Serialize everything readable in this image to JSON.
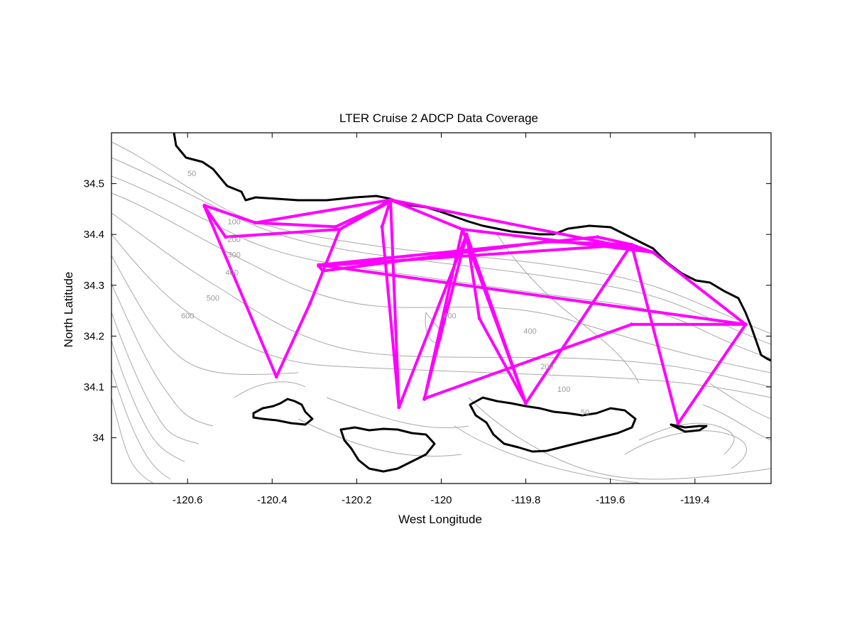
{
  "chart_data": {
    "type": "line",
    "title": "LTER Cruise 2 ADCP Data Coverage",
    "xlabel": "West Longitude",
    "ylabel": "North Latitude",
    "xlim": [
      -120.78,
      -119.22
    ],
    "ylim": [
      33.91,
      34.6
    ],
    "x_ticks": [
      -120.6,
      -120.4,
      -120.2,
      -120,
      -119.8,
      -119.6,
      -119.4
    ],
    "x_tick_labels": [
      "-120.6",
      "-120.4",
      "-120.2",
      "-120",
      "-119.8",
      "-119.6",
      "-119.4"
    ],
    "y_ticks": [
      34,
      34.1,
      34.2,
      34.3,
      34.4,
      34.5
    ],
    "y_tick_labels": [
      "34",
      "34.1",
      "34.2",
      "34.3",
      "34.4",
      "34.5"
    ],
    "grid": false,
    "track_color": "#ff00ff",
    "coast_color": "#000000",
    "contour_color": "#999999",
    "contour_labels": [
      {
        "text": "50",
        "x": -120.59,
        "y": 34.515
      },
      {
        "text": "100",
        "x": -120.49,
        "y": 34.42
      },
      {
        "text": "200",
        "x": -120.49,
        "y": 34.385
      },
      {
        "text": "300",
        "x": -120.49,
        "y": 34.355
      },
      {
        "text": "400",
        "x": -120.495,
        "y": 34.32
      },
      {
        "text": "500",
        "x": -120.54,
        "y": 34.27
      },
      {
        "text": "600",
        "x": -120.6,
        "y": 34.235
      },
      {
        "text": "400",
        "x": -119.98,
        "y": 34.235
      },
      {
        "text": "400",
        "x": -119.79,
        "y": 34.205
      },
      {
        "text": "200",
        "x": -119.75,
        "y": 34.135
      },
      {
        "text": "100",
        "x": -119.71,
        "y": 34.09
      },
      {
        "text": "50",
        "x": -119.66,
        "y": 34.045
      }
    ],
    "series": [
      {
        "values": [
          [
            -120.56,
            34.457
          ],
          [
            -120.44,
            34.423
          ],
          [
            -120.25,
            34.415
          ],
          [
            -120.12,
            34.465
          ],
          [
            -120.24,
            34.41
          ],
          [
            -120.51,
            34.395
          ],
          [
            -120.56,
            34.455
          ],
          [
            -120.39,
            34.12
          ],
          [
            -120.31,
            34.265
          ],
          [
            -120.24,
            34.41
          ],
          [
            -120.12,
            34.468
          ],
          [
            -120.14,
            34.415
          ],
          [
            -120.1,
            34.06
          ],
          [
            -120.12,
            34.468
          ],
          [
            -119.95,
            34.41
          ],
          [
            -120.04,
            34.076
          ],
          [
            -119.95,
            34.41
          ],
          [
            -119.8,
            34.068
          ],
          [
            -119.91,
            34.235
          ],
          [
            -119.94,
            34.4
          ],
          [
            -120.04,
            34.077
          ],
          [
            -119.55,
            34.223
          ],
          [
            -119.28,
            34.223
          ],
          [
            -119.44,
            34.028
          ],
          [
            -119.55,
            34.38
          ],
          [
            -119.8,
            34.068
          ],
          [
            -119.94,
            34.4
          ],
          [
            -120.1,
            34.06
          ],
          [
            -120.12,
            34.468
          ],
          [
            -119.5,
            34.365
          ],
          [
            -119.28,
            34.223
          ],
          [
            -120.29,
            34.34
          ],
          [
            -119.63,
            34.395
          ],
          [
            -119.55,
            34.38
          ],
          [
            -120.29,
            34.338
          ],
          [
            -120.28,
            34.328
          ],
          [
            -119.75,
            34.386
          ],
          [
            -119.55,
            34.38
          ],
          [
            -119.5,
            34.365
          ],
          [
            -119.95,
            34.41
          ],
          [
            -120.12,
            34.468
          ],
          [
            -120.44,
            34.423
          ]
        ]
      }
    ]
  }
}
